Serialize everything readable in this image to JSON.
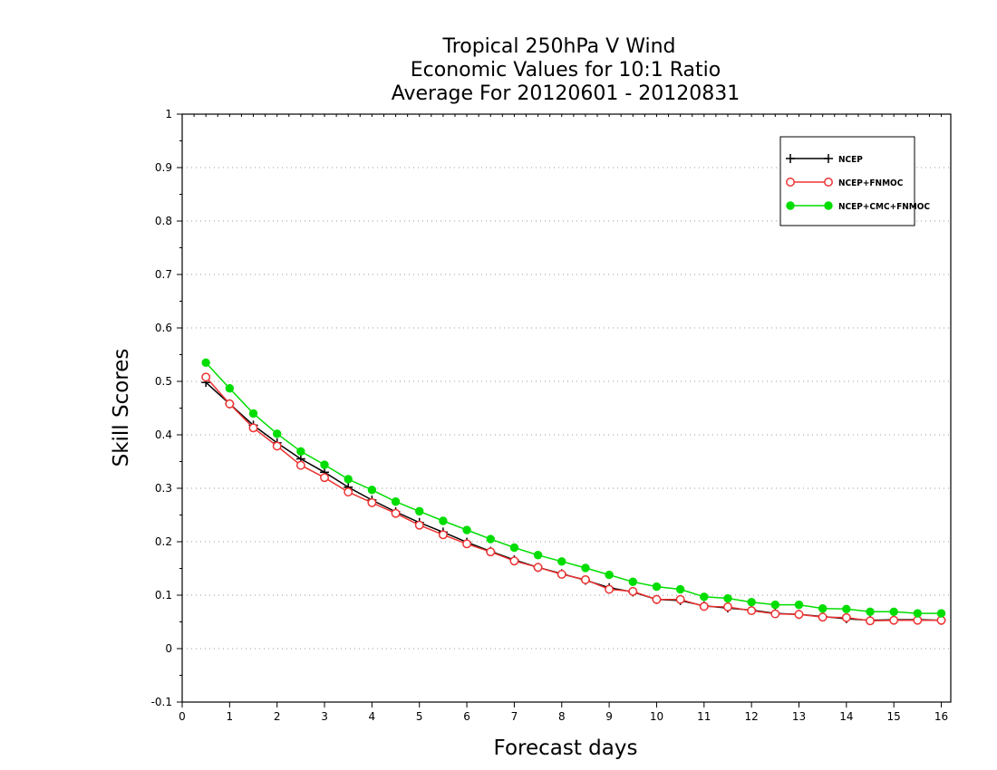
{
  "chart_data": {
    "type": "line",
    "title_lines": [
      "Tropical 250hPa V Wind",
      "Economic Values for 10:1 Ratio",
      "Average For 20120601 - 20120831"
    ],
    "xlabel": "Forecast days",
    "ylabel": "Skill Scores",
    "xlim": [
      0,
      16.2
    ],
    "ylim": [
      -0.1,
      1
    ],
    "x_ticks": [
      0,
      1,
      2,
      3,
      4,
      5,
      6,
      7,
      8,
      9,
      10,
      11,
      12,
      13,
      14,
      15,
      16
    ],
    "y_ticks": [
      -0.1,
      0,
      0.1,
      0.2,
      0.3,
      0.4,
      0.5,
      0.6,
      0.7,
      0.8,
      0.9,
      1
    ],
    "y_tick_labels": [
      "-0.1",
      "0",
      "0.1",
      "0.2",
      "0.3",
      "0.4",
      "0.5",
      "0.6",
      "0.7",
      "0.8",
      "0.9",
      "1"
    ],
    "grid": "horizontal dotted",
    "legend_position": "top-right",
    "x": [
      0.5,
      1,
      1.5,
      2,
      2.5,
      3,
      3.5,
      4,
      4.5,
      5,
      5.5,
      6,
      6.5,
      7,
      7.5,
      8,
      8.5,
      9,
      9.5,
      10,
      10.5,
      11,
      11.5,
      12,
      12.5,
      13,
      13.5,
      14,
      14.5,
      15,
      15.5,
      16
    ],
    "series": [
      {
        "name": "NCEP",
        "color": "#000000",
        "marker": "plus",
        "values": [
          0.498,
          0.458,
          0.418,
          0.385,
          0.355,
          0.33,
          0.302,
          0.278,
          0.256,
          0.236,
          0.218,
          0.199,
          0.182,
          0.166,
          0.152,
          0.14,
          0.128,
          0.114,
          0.106,
          0.092,
          0.09,
          0.08,
          0.076,
          0.072,
          0.066,
          0.064,
          0.06,
          0.056,
          0.053,
          0.054,
          0.054,
          0.053
        ]
      },
      {
        "name": "NCEP+FNMOC",
        "color": "#ee3333",
        "marker": "open-circle",
        "values": [
          0.508,
          0.458,
          0.413,
          0.379,
          0.343,
          0.32,
          0.293,
          0.273,
          0.253,
          0.231,
          0.213,
          0.196,
          0.181,
          0.164,
          0.152,
          0.139,
          0.129,
          0.111,
          0.107,
          0.092,
          0.092,
          0.079,
          0.078,
          0.071,
          0.065,
          0.064,
          0.059,
          0.058,
          0.052,
          0.053,
          0.053,
          0.053
        ]
      },
      {
        "name": "NCEP+CMC+FNMOC",
        "color": "#00dd00",
        "marker": "filled-circle",
        "values": [
          0.535,
          0.487,
          0.44,
          0.402,
          0.369,
          0.344,
          0.317,
          0.297,
          0.275,
          0.257,
          0.239,
          0.222,
          0.205,
          0.189,
          0.175,
          0.163,
          0.151,
          0.138,
          0.125,
          0.116,
          0.111,
          0.097,
          0.094,
          0.087,
          0.082,
          0.082,
          0.075,
          0.074,
          0.069,
          0.069,
          0.066,
          0.066
        ]
      }
    ]
  }
}
